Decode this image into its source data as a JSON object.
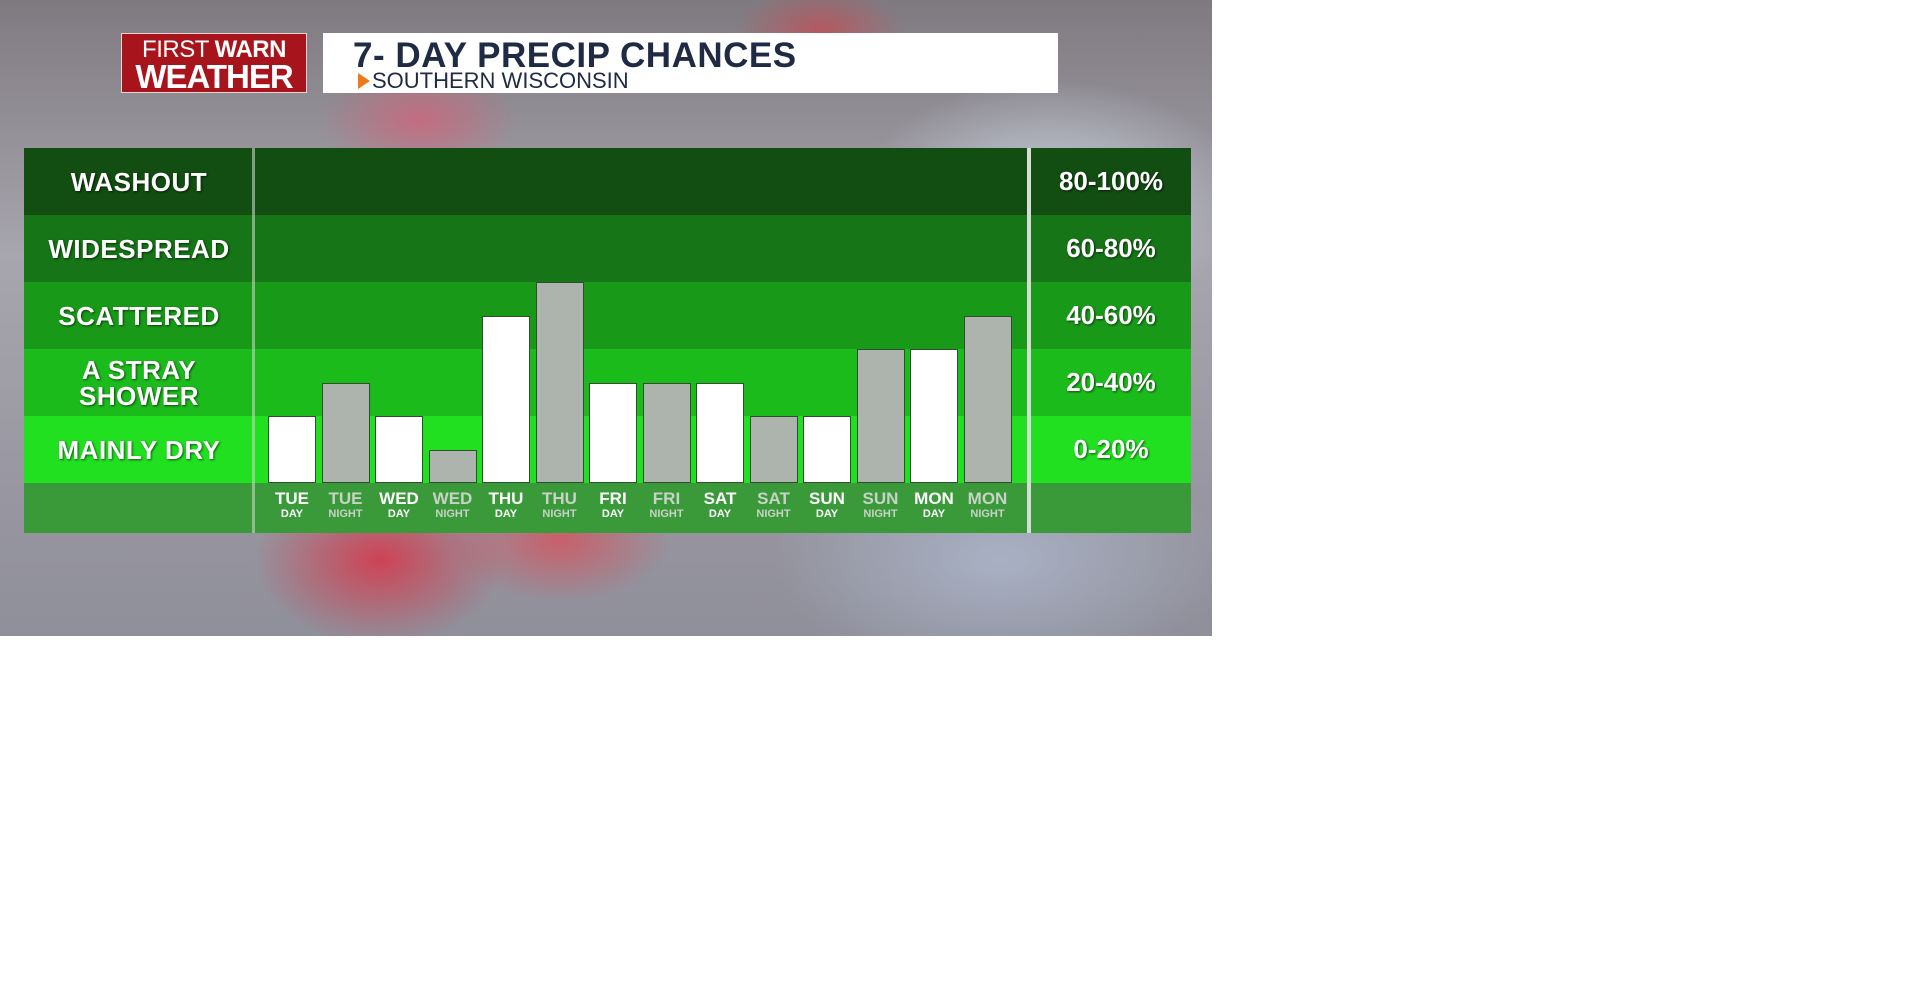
{
  "header": {
    "logo_line1_a": "FIRST",
    "logo_line1_b": "WARN",
    "logo_line2": "WEATHER",
    "title": "7- DAY PRECIP CHANCES",
    "subtitle": "SOUTHERN WISCONSIN"
  },
  "colors": {
    "band_washout": "#124d12",
    "band_widespread": "#167516",
    "band_scattered": "#189a18",
    "band_stray": "#1cbb1c",
    "band_dry": "#20e020",
    "axis_row": "#3a9a3a",
    "bar_day": "#ffffff",
    "bar_night": "#adb3ad",
    "label_day": "#ffffff",
    "label_night": "#c8d2c8"
  },
  "chart_data": {
    "type": "bar",
    "title": "7- DAY PRECIP CHANCES",
    "ylim": [
      0,
      100
    ],
    "categories_levels": [
      {
        "name": "WASHOUT",
        "range": "80-100%",
        "from": 80,
        "to": 100
      },
      {
        "name": "WIDESPREAD",
        "range": "60-80%",
        "from": 60,
        "to": 80
      },
      {
        "name": "SCATTERED",
        "range": "40-60%",
        "from": 40,
        "to": 60
      },
      {
        "name": "A STRAY SHOWER",
        "range": "20-40%",
        "from": 20,
        "to": 40
      },
      {
        "name": "MAINLY DRY",
        "range": "0-20%",
        "from": 0,
        "to": 20
      }
    ],
    "bars": [
      {
        "day": "TUE",
        "period": "DAY",
        "value": 20
      },
      {
        "day": "TUE",
        "period": "NIGHT",
        "value": 30
      },
      {
        "day": "WED",
        "period": "DAY",
        "value": 20
      },
      {
        "day": "WED",
        "period": "NIGHT",
        "value": 10
      },
      {
        "day": "THU",
        "period": "DAY",
        "value": 50
      },
      {
        "day": "THU",
        "period": "NIGHT",
        "value": 60
      },
      {
        "day": "FRI",
        "period": "DAY",
        "value": 30
      },
      {
        "day": "FRI",
        "period": "NIGHT",
        "value": 30
      },
      {
        "day": "SAT",
        "period": "DAY",
        "value": 30
      },
      {
        "day": "SAT",
        "period": "NIGHT",
        "value": 20
      },
      {
        "day": "SUN",
        "period": "DAY",
        "value": 20
      },
      {
        "day": "SUN",
        "period": "NIGHT",
        "value": 40
      },
      {
        "day": "MON",
        "period": "DAY",
        "value": 40
      },
      {
        "day": "MON",
        "period": "NIGHT",
        "value": 50
      }
    ]
  }
}
